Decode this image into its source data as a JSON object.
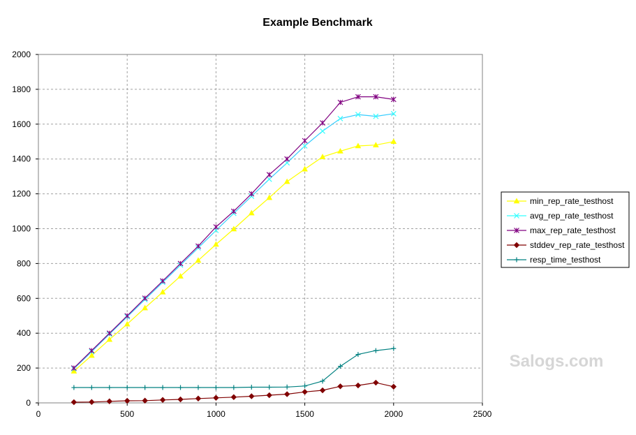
{
  "chart_data": {
    "type": "line",
    "title": "Example Benchmark",
    "xlabel": "",
    "ylabel": "",
    "xlim": [
      0,
      2500
    ],
    "ylim": [
      0,
      2000
    ],
    "xticks": [
      0,
      500,
      1000,
      1500,
      2000,
      2500
    ],
    "yticks": [
      0,
      200,
      400,
      600,
      800,
      1000,
      1200,
      1400,
      1600,
      1800,
      2000
    ],
    "grid": true,
    "legend_position": "right",
    "x": [
      200,
      300,
      400,
      500,
      600,
      700,
      800,
      900,
      1000,
      1100,
      1200,
      1300,
      1400,
      1500,
      1600,
      1700,
      1800,
      1900,
      2000
    ],
    "series": [
      {
        "name": "min_rep_rate_testhost",
        "color": "#ffff00",
        "marker": "triangle",
        "values": [
          182,
          272,
          364,
          452,
          545,
          636,
          727,
          818,
          910,
          998,
          1090,
          1178,
          1270,
          1342,
          1412,
          1445,
          1475,
          1480,
          1500
        ]
      },
      {
        "name": "avg_rep_rate_testhost",
        "color": "#33ffff",
        "marker": "x",
        "values": [
          196,
          294,
          395,
          494,
          593,
          692,
          791,
          890,
          990,
          1088,
          1186,
          1284,
          1378,
          1475,
          1560,
          1632,
          1655,
          1645,
          1660
        ]
      },
      {
        "name": "max_rep_rate_testhost",
        "color": "#800080",
        "marker": "star",
        "values": [
          200,
          300,
          400,
          500,
          601,
          700,
          800,
          900,
          1010,
          1100,
          1200,
          1310,
          1400,
          1505,
          1607,
          1725,
          1757,
          1757,
          1742
        ]
      },
      {
        "name": "stddev_rep_rate_testhost",
        "color": "#800000",
        "marker": "diamond",
        "values": [
          4,
          5,
          9,
          12,
          13,
          17,
          20,
          25,
          29,
          33,
          38,
          44,
          50,
          63,
          72,
          95,
          100,
          116,
          93
        ]
      },
      {
        "name": "resp_time_testhost",
        "color": "#008080",
        "marker": "plus",
        "values": [
          88,
          88,
          88,
          88,
          88,
          88,
          88,
          88,
          88,
          88,
          90,
          90,
          91,
          97,
          125,
          210,
          278,
          300,
          312
        ]
      }
    ]
  },
  "watermark": "Salogs.com"
}
